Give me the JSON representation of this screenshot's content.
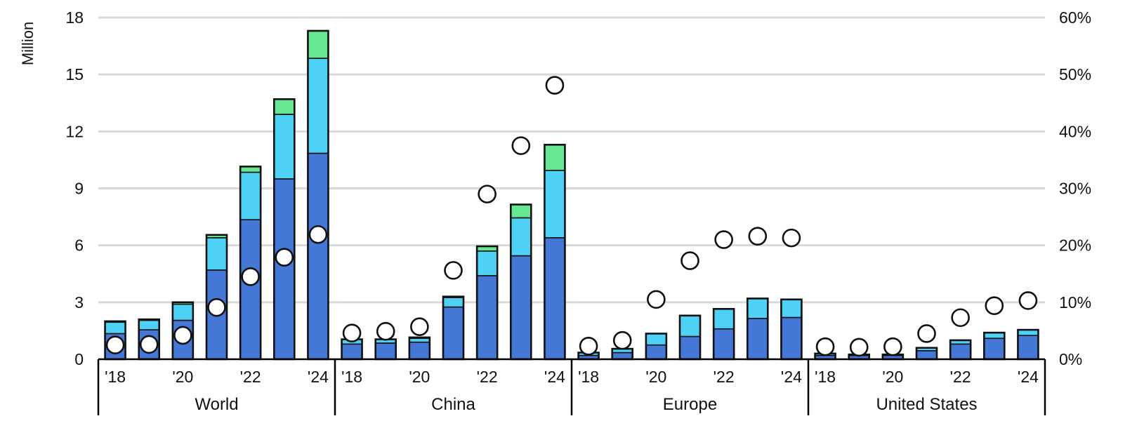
{
  "chart_data": {
    "type": "bar",
    "subtype": "stacked bar with scatter overlay",
    "ylabel_left": "Million",
    "y_left_ticks": [
      "0",
      "3",
      "6",
      "9",
      "12",
      "15",
      "18"
    ],
    "y_left_range": [
      0,
      18
    ],
    "y_right_ticks": [
      "0%",
      "10%",
      "20%",
      "30%",
      "40%",
      "50%",
      "60%"
    ],
    "y_right_range": [
      0,
      60
    ],
    "x_tick_labels": [
      "'18",
      "",
      "'20",
      "",
      "'22",
      "",
      "'24"
    ],
    "grid": "horizontal",
    "colors": {
      "series1": "#4477D6",
      "series2": "#4DD2F5",
      "series3": "#66E892",
      "marker_fill": "#FFFFFF",
      "outline": "#111111",
      "grid": "#D9D9D9"
    },
    "groups": [
      {
        "name": "World",
        "years": [
          2018,
          2019,
          2020,
          2021,
          2022,
          2023,
          2024
        ],
        "series1": [
          1.35,
          1.55,
          2.05,
          4.7,
          7.35,
          9.5,
          10.85
        ],
        "series2": [
          0.6,
          0.5,
          0.85,
          1.7,
          2.5,
          3.4,
          5.0
        ],
        "series3": [
          0.05,
          0.05,
          0.1,
          0.15,
          0.3,
          0.8,
          1.45
        ],
        "share_pct": [
          2.5,
          2.6,
          4.2,
          9.1,
          14.5,
          17.9,
          21.9
        ]
      },
      {
        "name": "China",
        "years": [
          2018,
          2019,
          2020,
          2021,
          2022,
          2023,
          2024
        ],
        "series1": [
          0.8,
          0.85,
          0.9,
          2.75,
          4.4,
          5.45,
          6.4
        ],
        "series2": [
          0.25,
          0.2,
          0.2,
          0.5,
          1.3,
          2.0,
          3.55
        ],
        "series3": [
          0.0,
          0.0,
          0.05,
          0.05,
          0.25,
          0.7,
          1.35
        ],
        "share_pct": [
          4.6,
          4.9,
          5.7,
          15.6,
          29.0,
          37.5,
          48.1
        ]
      },
      {
        "name": "Europe",
        "years": [
          2018,
          2019,
          2020,
          2021,
          2022,
          2023,
          2024
        ],
        "series1": [
          0.2,
          0.35,
          0.75,
          1.2,
          1.6,
          2.15,
          2.2
        ],
        "series2": [
          0.15,
          0.2,
          0.6,
          1.1,
          1.05,
          1.05,
          0.95
        ],
        "series3": [
          0.0,
          0.0,
          0.0,
          0.0,
          0.0,
          0.0,
          0.0
        ],
        "share_pct": [
          2.3,
          3.3,
          10.5,
          17.3,
          21.0,
          21.6,
          21.3
        ]
      },
      {
        "name": "United States",
        "years": [
          2018,
          2019,
          2020,
          2021,
          2022,
          2023,
          2024
        ],
        "series1": [
          0.2,
          0.2,
          0.2,
          0.45,
          0.8,
          1.1,
          1.25
        ],
        "series2": [
          0.1,
          0.05,
          0.05,
          0.15,
          0.2,
          0.3,
          0.3
        ],
        "series3": [
          0.0,
          0.0,
          0.0,
          0.0,
          0.0,
          0.0,
          0.0
        ],
        "share_pct": [
          2.2,
          2.1,
          2.2,
          4.5,
          7.3,
          9.4,
          10.3
        ]
      }
    ]
  }
}
